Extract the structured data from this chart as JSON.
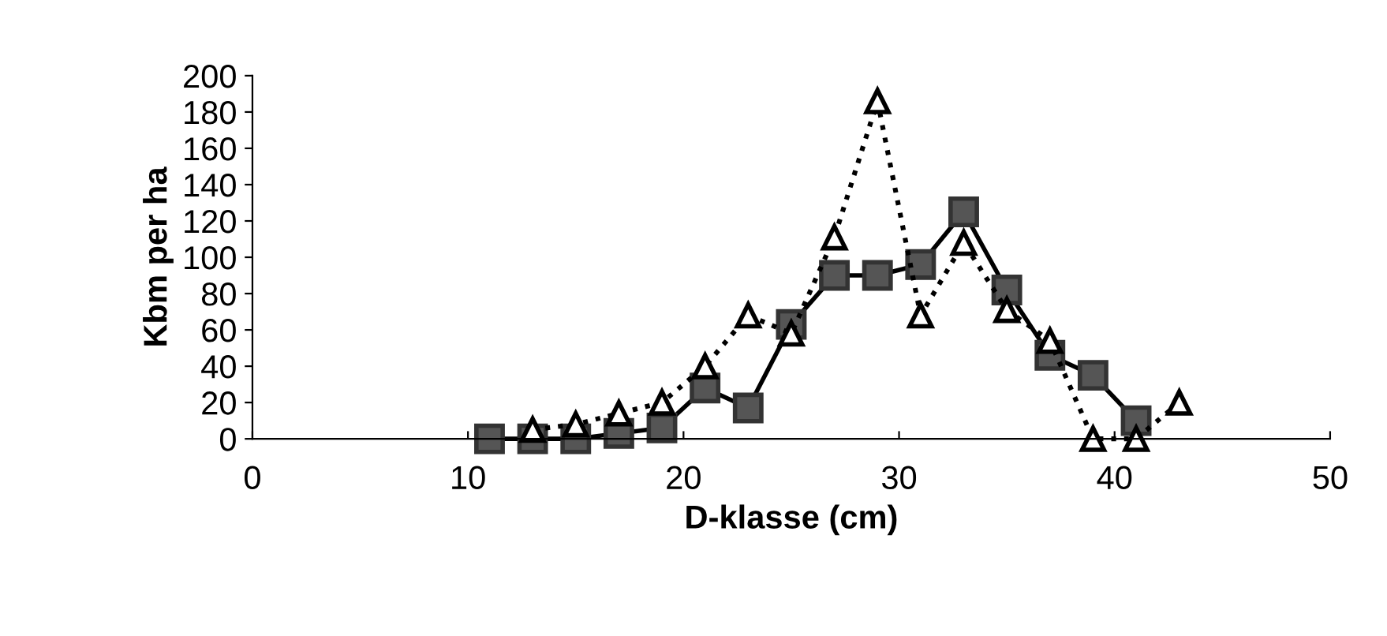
{
  "chart_data": {
    "type": "line",
    "xlabel": "D-klasse (cm)",
    "ylabel": "Kbm per ha",
    "xlim": [
      0,
      50
    ],
    "xticks": [
      0,
      10,
      20,
      30,
      40,
      50
    ],
    "ylim": [
      0,
      200
    ],
    "yticks": [
      0,
      20,
      40,
      60,
      80,
      100,
      120,
      140,
      160,
      180,
      200
    ],
    "grid": false,
    "legend": false,
    "series": [
      {
        "color": "#555555",
        "marker": "square",
        "line_style": "solid",
        "x": [
          11,
          13,
          15,
          17,
          19,
          21,
          23,
          25,
          27,
          29,
          31,
          33,
          35,
          37,
          39,
          41
        ],
        "values": [
          0,
          0,
          0,
          3,
          6,
          28,
          17,
          63,
          90,
          90,
          96,
          125,
          82,
          46,
          35,
          10
        ]
      },
      {
        "color": "#ffffff",
        "marker": "triangle",
        "line_style": "dotted",
        "x": [
          13,
          15,
          17,
          19,
          21,
          23,
          25,
          27,
          29,
          31,
          33,
          35,
          37,
          39,
          41,
          43
        ],
        "values": [
          5,
          8,
          14,
          20,
          40,
          68,
          58,
          111,
          186,
          68,
          108,
          71,
          54,
          0,
          0,
          20
        ]
      }
    ]
  }
}
